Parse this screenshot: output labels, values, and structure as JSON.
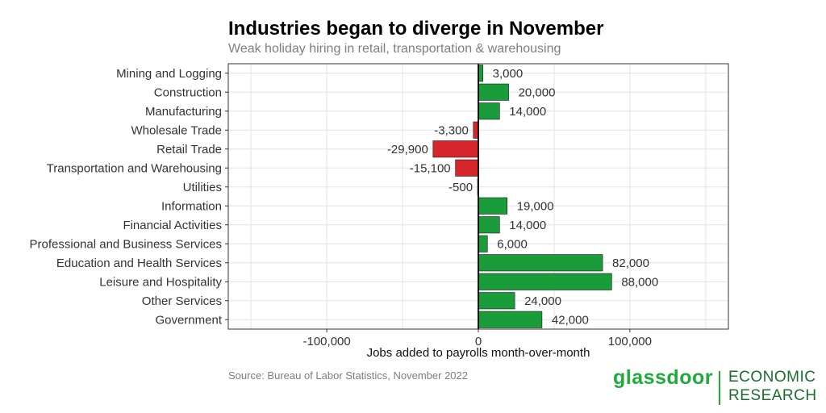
{
  "title": "Industries began to diverge in November",
  "subtitle": "Weak holiday hiring in retail, transportation & warehousing",
  "source": "Source: Bureau of Labor Statistics, November 2022",
  "logo": {
    "word": "glassdoor",
    "line1": "ECONOMIC",
    "line2": "RESEARCH"
  },
  "colors": {
    "positive": "#1a9c3a",
    "negative": "#d6262c",
    "grid": "#e3e3e3",
    "logo": "#1faa3c"
  },
  "chart_data": {
    "type": "bar",
    "orientation": "horizontal",
    "categories": [
      "Mining and Logging",
      "Construction",
      "Manufacturing",
      "Wholesale Trade",
      "Retail Trade",
      "Transportation and Warehousing",
      "Utilities",
      "Information",
      "Financial Activities",
      "Professional and Business Services",
      "Education and Health Services",
      "Leisure and Hospitality",
      "Other Services",
      "Government"
    ],
    "values": [
      3000,
      20000,
      14000,
      -3300,
      -29900,
      -15100,
      -500,
      19000,
      14000,
      6000,
      82000,
      88000,
      24000,
      42000
    ],
    "data_labels": [
      "3,000",
      "20,000",
      "14,000",
      "-3,300",
      "-29,900",
      "-15,100",
      "-500",
      "19,000",
      "14,000",
      "6,000",
      "82,000",
      "88,000",
      "24,000",
      "42,000"
    ],
    "xlim": [
      -165000,
      165000
    ],
    "xticks": [
      -100000,
      0,
      100000
    ],
    "xtick_labels": [
      "-100,000",
      "0",
      "100,000"
    ],
    "xlabel": "Jobs added to payrolls month-over-month",
    "grid": true
  }
}
